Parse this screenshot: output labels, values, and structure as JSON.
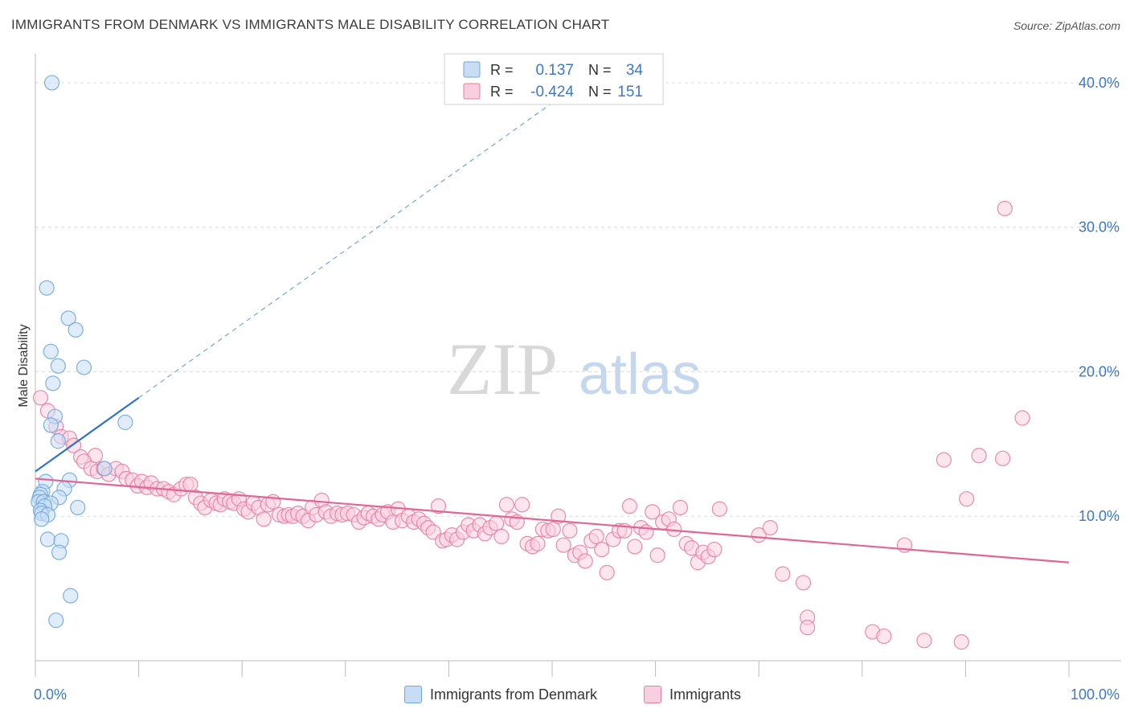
{
  "title": "IMMIGRANTS FROM DENMARK VS IMMIGRANTS MALE DISABILITY CORRELATION CHART",
  "source": "Source: ZipAtlas.com",
  "watermark": {
    "zip": "ZIP",
    "atlas": "atlas"
  },
  "colors": {
    "blue": "#6fa8dc",
    "blue_fill": "#c9dcf5",
    "blue_line": "#2f73c9",
    "pink": "#e87ea3",
    "pink_fill": "#f9cfdf",
    "pink_line": "#e26597",
    "axis_text": "#3c78c8",
    "grid": "#dcdcdc"
  },
  "stats_box": {
    "rows": [
      {
        "r_label": "R =",
        "r_value": "0.137",
        "n_label": "N =",
        "n_value": "34"
      },
      {
        "r_label": "R =",
        "r_value": "-0.424",
        "n_label": "N =",
        "n_value": "151"
      }
    ]
  },
  "chart_data": {
    "type": "scatter",
    "title": "IMMIGRANTS FROM DENMARK VS IMMIGRANTS MALE DISABILITY CORRELATION CHART",
    "xlabel": "",
    "ylabel": "Male Disability",
    "xlim": [
      0,
      100
    ],
    "ylim": [
      0,
      42
    ],
    "x_tick_labels": [
      "0.0%",
      "100.0%"
    ],
    "y_ticks": [
      10,
      20,
      30,
      40
    ],
    "y_tick_labels": [
      "10.0%",
      "20.0%",
      "30.0%",
      "40.0%"
    ],
    "grid": true,
    "legend_position": "bottom",
    "series": [
      {
        "name": "Immigrants from Denmark",
        "color": "#6fa8dc",
        "trend": {
          "x0": 0,
          "y0": 13.1,
          "x1": 10,
          "y1": 18.2,
          "dashed_to_x": 50
        },
        "points": [
          [
            1.6,
            40.0
          ],
          [
            1.1,
            25.8
          ],
          [
            3.2,
            23.7
          ],
          [
            3.9,
            22.9
          ],
          [
            1.5,
            21.4
          ],
          [
            2.2,
            20.4
          ],
          [
            4.7,
            20.3
          ],
          [
            1.7,
            19.2
          ],
          [
            8.7,
            16.5
          ],
          [
            1.9,
            16.9
          ],
          [
            1.5,
            16.3
          ],
          [
            2.2,
            15.2
          ],
          [
            6.7,
            13.3
          ],
          [
            1.0,
            12.4
          ],
          [
            3.3,
            12.5
          ],
          [
            2.8,
            11.9
          ],
          [
            0.7,
            11.7
          ],
          [
            0.5,
            11.5
          ],
          [
            0.4,
            11.3
          ],
          [
            2.3,
            11.3
          ],
          [
            0.3,
            11.0
          ],
          [
            0.8,
            11.0
          ],
          [
            1.5,
            10.9
          ],
          [
            0.9,
            10.7
          ],
          [
            4.1,
            10.6
          ],
          [
            0.5,
            10.4
          ],
          [
            0.6,
            10.2
          ],
          [
            1.2,
            10.1
          ],
          [
            0.6,
            9.8
          ],
          [
            1.2,
            8.4
          ],
          [
            2.5,
            8.3
          ],
          [
            2.3,
            7.5
          ],
          [
            3.4,
            4.5
          ],
          [
            2.0,
            2.8
          ]
        ]
      },
      {
        "name": "Immigrants",
        "color": "#e87ea3",
        "trend": {
          "x0": 0,
          "y0": 12.6,
          "x1": 100,
          "y1": 6.8
        },
        "points": [
          [
            0.5,
            18.2
          ],
          [
            1.2,
            17.3
          ],
          [
            2.0,
            16.2
          ],
          [
            2.5,
            15.5
          ],
          [
            3.3,
            15.4
          ],
          [
            3.7,
            14.9
          ],
          [
            4.4,
            14.1
          ],
          [
            5.8,
            14.2
          ],
          [
            4.7,
            13.8
          ],
          [
            5.4,
            13.3
          ],
          [
            6.0,
            13.1
          ],
          [
            6.6,
            13.3
          ],
          [
            7.1,
            12.9
          ],
          [
            7.8,
            13.3
          ],
          [
            8.4,
            13.1
          ],
          [
            8.8,
            12.6
          ],
          [
            9.4,
            12.5
          ],
          [
            9.9,
            12.1
          ],
          [
            10.3,
            12.4
          ],
          [
            10.8,
            12.0
          ],
          [
            11.2,
            12.3
          ],
          [
            11.8,
            11.9
          ],
          [
            12.4,
            11.9
          ],
          [
            12.9,
            11.7
          ],
          [
            13.4,
            11.5
          ],
          [
            14.1,
            11.9
          ],
          [
            14.6,
            12.2
          ],
          [
            15.0,
            12.2
          ],
          [
            15.5,
            11.3
          ],
          [
            16.0,
            10.9
          ],
          [
            16.4,
            10.6
          ],
          [
            17.0,
            11.1
          ],
          [
            17.5,
            10.9
          ],
          [
            17.9,
            10.8
          ],
          [
            18.3,
            11.2
          ],
          [
            18.8,
            11.0
          ],
          [
            19.2,
            10.9
          ],
          [
            19.7,
            11.2
          ],
          [
            20.2,
            10.5
          ],
          [
            20.6,
            10.3
          ],
          [
            21.1,
            10.9
          ],
          [
            21.6,
            10.6
          ],
          [
            22.1,
            9.8
          ],
          [
            22.5,
            10.8
          ],
          [
            23.0,
            11.0
          ],
          [
            23.6,
            10.1
          ],
          [
            24.1,
            10.0
          ],
          [
            24.5,
            10.1
          ],
          [
            24.9,
            10.0
          ],
          [
            25.4,
            10.2
          ],
          [
            25.9,
            10.0
          ],
          [
            26.4,
            9.7
          ],
          [
            26.8,
            10.6
          ],
          [
            27.2,
            10.1
          ],
          [
            27.7,
            11.1
          ],
          [
            28.1,
            10.3
          ],
          [
            28.6,
            10.0
          ],
          [
            29.2,
            10.2
          ],
          [
            29.7,
            10.1
          ],
          [
            30.2,
            10.2
          ],
          [
            30.8,
            10.1
          ],
          [
            31.3,
            9.6
          ],
          [
            31.8,
            9.9
          ],
          [
            32.2,
            10.2
          ],
          [
            32.7,
            10.0
          ],
          [
            33.2,
            9.8
          ],
          [
            33.6,
            10.1
          ],
          [
            34.1,
            10.3
          ],
          [
            34.6,
            9.6
          ],
          [
            35.1,
            10.5
          ],
          [
            35.5,
            9.7
          ],
          [
            36.1,
            10.0
          ],
          [
            36.6,
            9.6
          ],
          [
            37.1,
            9.8
          ],
          [
            37.6,
            9.5
          ],
          [
            38.0,
            9.2
          ],
          [
            38.5,
            8.9
          ],
          [
            39.0,
            10.7
          ],
          [
            39.4,
            8.3
          ],
          [
            39.8,
            8.4
          ],
          [
            40.3,
            8.7
          ],
          [
            40.8,
            8.4
          ],
          [
            41.4,
            8.9
          ],
          [
            41.9,
            9.4
          ],
          [
            42.4,
            9.0
          ],
          [
            43.0,
            9.4
          ],
          [
            43.5,
            8.8
          ],
          [
            44.0,
            9.2
          ],
          [
            44.6,
            9.5
          ],
          [
            45.1,
            8.6
          ],
          [
            45.6,
            10.8
          ],
          [
            46.1,
            9.8
          ],
          [
            46.6,
            9.6
          ],
          [
            47.1,
            10.8
          ],
          [
            47.6,
            8.1
          ],
          [
            48.1,
            7.9
          ],
          [
            48.6,
            8.1
          ],
          [
            49.1,
            9.1
          ],
          [
            49.6,
            9.0
          ],
          [
            50.1,
            9.1
          ],
          [
            50.6,
            10.0
          ],
          [
            51.1,
            8.0
          ],
          [
            51.7,
            9.0
          ],
          [
            52.2,
            7.3
          ],
          [
            52.7,
            7.5
          ],
          [
            53.2,
            6.9
          ],
          [
            53.8,
            8.3
          ],
          [
            54.3,
            8.6
          ],
          [
            54.8,
            7.7
          ],
          [
            55.3,
            6.1
          ],
          [
            55.9,
            8.4
          ],
          [
            56.5,
            9.0
          ],
          [
            57.0,
            9.0
          ],
          [
            57.5,
            10.7
          ],
          [
            58.0,
            7.9
          ],
          [
            58.6,
            9.2
          ],
          [
            59.1,
            8.9
          ],
          [
            59.7,
            10.3
          ],
          [
            60.2,
            7.3
          ],
          [
            60.7,
            9.6
          ],
          [
            61.3,
            9.8
          ],
          [
            61.8,
            9.1
          ],
          [
            62.4,
            10.6
          ],
          [
            63.0,
            8.1
          ],
          [
            63.5,
            7.8
          ],
          [
            64.1,
            6.8
          ],
          [
            64.6,
            7.5
          ],
          [
            65.1,
            7.2
          ],
          [
            65.7,
            7.7
          ],
          [
            66.2,
            10.5
          ],
          [
            70.0,
            8.7
          ],
          [
            71.1,
            9.2
          ],
          [
            72.3,
            6.0
          ],
          [
            74.3,
            5.4
          ],
          [
            74.7,
            3.0
          ],
          [
            74.7,
            2.3
          ],
          [
            81.0,
            2.0
          ],
          [
            82.1,
            1.7
          ],
          [
            86.0,
            1.4
          ],
          [
            89.6,
            1.3
          ],
          [
            84.1,
            8.0
          ],
          [
            87.9,
            13.9
          ],
          [
            90.1,
            11.2
          ],
          [
            91.3,
            14.2
          ],
          [
            93.6,
            14.0
          ],
          [
            95.5,
            16.8
          ],
          [
            93.8,
            31.3
          ]
        ]
      }
    ]
  }
}
